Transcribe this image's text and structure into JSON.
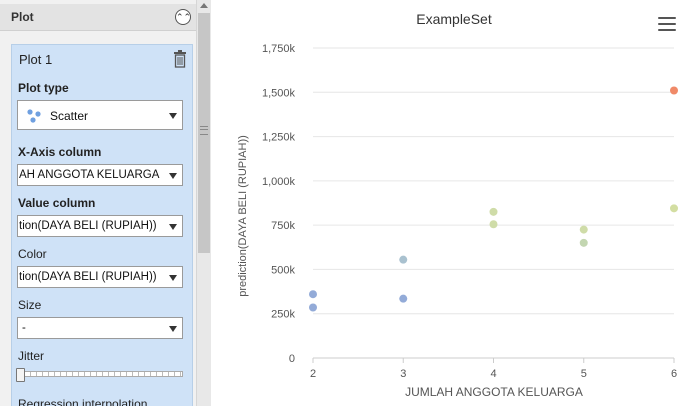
{
  "panel": {
    "title": "Plot",
    "plot_card": {
      "title": "Plot 1",
      "plot_type": {
        "label": "Plot type",
        "value": "Scatter"
      },
      "x_axis": {
        "label": "X-Axis column",
        "value": "AH ANGGOTA KELUARGA"
      },
      "value_column": {
        "label": "Value column",
        "value": "tion(DAYA BELI (RUPIAH))"
      },
      "color": {
        "label": "Color",
        "value": "tion(DAYA BELI (RUPIAH))"
      },
      "size": {
        "label": "Size",
        "value": "-"
      },
      "jitter": {
        "label": "Jitter",
        "level": 0
      },
      "regression": {
        "label": "Regression interpolation"
      }
    }
  },
  "icons": [
    "chevron-up-double-icon",
    "trash-icon",
    "scatter-icon",
    "chevron-down-icon",
    "hamburger-menu-icon"
  ],
  "colors": {
    "low": "#8fa9d6",
    "mid": "#c9d9a8",
    "high": "#f08a68",
    "grid": "#e6e6e6",
    "card_bg": "#cfe2f7"
  },
  "chart_data": {
    "type": "scatter",
    "title": "ExampleSet",
    "xlabel": "JUMLAH ANGGOTA KELUARGA",
    "ylabel": "prediction(DAYA BELI (RUPIAH))",
    "xlim": [
      2,
      6
    ],
    "ylim": [
      0,
      1750000
    ],
    "x_ticks": [
      "2",
      "3",
      "4",
      "5",
      "6"
    ],
    "y_ticks": [
      "0",
      "250k",
      "500k",
      "750k",
      "1,000k",
      "1,250k",
      "1,500k",
      "1,750k"
    ],
    "grid": true,
    "points": [
      {
        "x": 2,
        "y": 360000,
        "color": "#93abd8"
      },
      {
        "x": 2,
        "y": 285000,
        "color": "#93abd8"
      },
      {
        "x": 3,
        "y": 555000,
        "color": "#a9c1cf"
      },
      {
        "x": 3,
        "y": 335000,
        "color": "#93abd8"
      },
      {
        "x": 4,
        "y": 825000,
        "color": "#cfdca8"
      },
      {
        "x": 4,
        "y": 755000,
        "color": "#cfdca8"
      },
      {
        "x": 5,
        "y": 725000,
        "color": "#cfdca8"
      },
      {
        "x": 5,
        "y": 650000,
        "color": "#c3d6b1"
      },
      {
        "x": 6,
        "y": 1510000,
        "color": "#f08a68"
      },
      {
        "x": 6,
        "y": 845000,
        "color": "#d3dea2"
      }
    ]
  }
}
